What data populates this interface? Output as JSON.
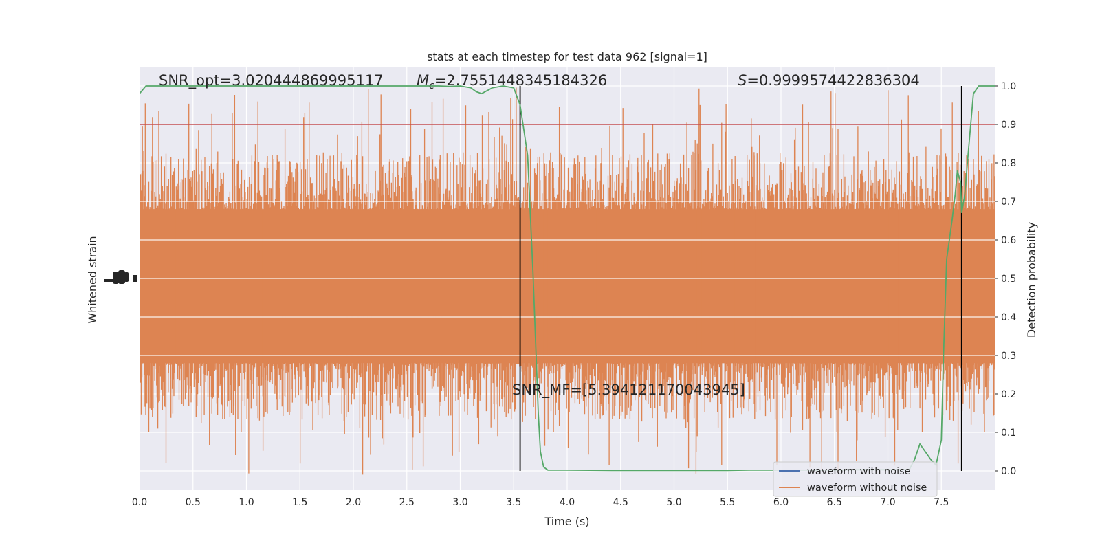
{
  "chart_data": {
    "type": "line",
    "title": "stats at each timestep for test data 962 [signal=1]",
    "xlabel": "Time (s)",
    "ylabel_left": "Whitened strain",
    "ylabel_right": "Detection probability",
    "xlim": [
      0.0,
      8.0
    ],
    "ylim_right": [
      -0.05,
      1.05
    ],
    "x_ticks": [
      "0.0",
      "0.5",
      "1.0",
      "1.5",
      "2.0",
      "2.5",
      "3.0",
      "3.5",
      "4.0",
      "4.5",
      "5.0",
      "5.5",
      "6.0",
      "6.5",
      "7.0",
      "7.5"
    ],
    "y_ticks_right": [
      "0.0",
      "0.1",
      "0.2",
      "0.3",
      "0.4",
      "0.5",
      "0.6",
      "0.7",
      "0.8",
      "0.9",
      "1.0"
    ],
    "grid": true,
    "annotations": {
      "snr_opt": "SNR_opt=3.020444869995117",
      "mc_symbol": "M",
      "mc_sub": "c",
      "mc_value": "=2.7551448345184326",
      "s_symbol": "S",
      "s_value": "=0.9999574422836304",
      "snr_mf": "SNR_MF=[5.394121170043945]"
    },
    "legend": {
      "placement": "lower-right",
      "entries": [
        {
          "label": "waveform with noise",
          "color": "#4c72b0"
        },
        {
          "label": "waveform without noise",
          "color": "#dd8452"
        }
      ]
    },
    "threshold": {
      "y": 0.9,
      "color": "#c44e52"
    },
    "vlines": [
      3.56,
      7.69
    ],
    "colors": {
      "noise_band": "#dd8452",
      "probability": "#55a868",
      "threshold": "#c44e52",
      "background": "#eaeaf2"
    },
    "series": [
      {
        "name": "detection probability",
        "color": "#55a868",
        "x": [
          0.0,
          0.06,
          0.1,
          0.5,
          1.0,
          1.5,
          2.0,
          2.5,
          2.8,
          2.9,
          3.0,
          3.1,
          3.15,
          3.2,
          3.3,
          3.4,
          3.5,
          3.56,
          3.63,
          3.68,
          3.73,
          3.75,
          3.78,
          3.82,
          4.0,
          4.5,
          5.0,
          5.5,
          5.7,
          6.0,
          6.5,
          6.7,
          7.0,
          7.2,
          7.25,
          7.3,
          7.35,
          7.4,
          7.45,
          7.5,
          7.52,
          7.55,
          7.6,
          7.63,
          7.65,
          7.68,
          7.69,
          7.72,
          7.75,
          7.8,
          7.85,
          7.9,
          7.95,
          8.0
        ],
        "y": [
          0.98,
          1.0,
          1.0,
          1.0,
          1.0,
          1.0,
          1.0,
          1.0,
          1.0,
          0.999,
          1.0,
          0.995,
          0.985,
          0.98,
          0.995,
          1.0,
          0.995,
          0.95,
          0.82,
          0.52,
          0.15,
          0.05,
          0.01,
          0.002,
          0.002,
          0.001,
          0.001,
          0.001,
          0.002,
          0.002,
          0.002,
          0.003,
          0.003,
          0.003,
          0.03,
          0.07,
          0.05,
          0.03,
          0.015,
          0.08,
          0.3,
          0.55,
          0.65,
          0.72,
          0.78,
          0.75,
          0.67,
          0.72,
          0.82,
          0.98,
          1.0,
          1.0,
          1.0,
          1.0
        ]
      }
    ],
    "noise_band": {
      "center": 0.48,
      "inner_halfwidth": 0.2,
      "typical_peak": 0.35,
      "max_peak": 0.52,
      "min_trough": -0.01,
      "max_time": 8.0
    }
  }
}
